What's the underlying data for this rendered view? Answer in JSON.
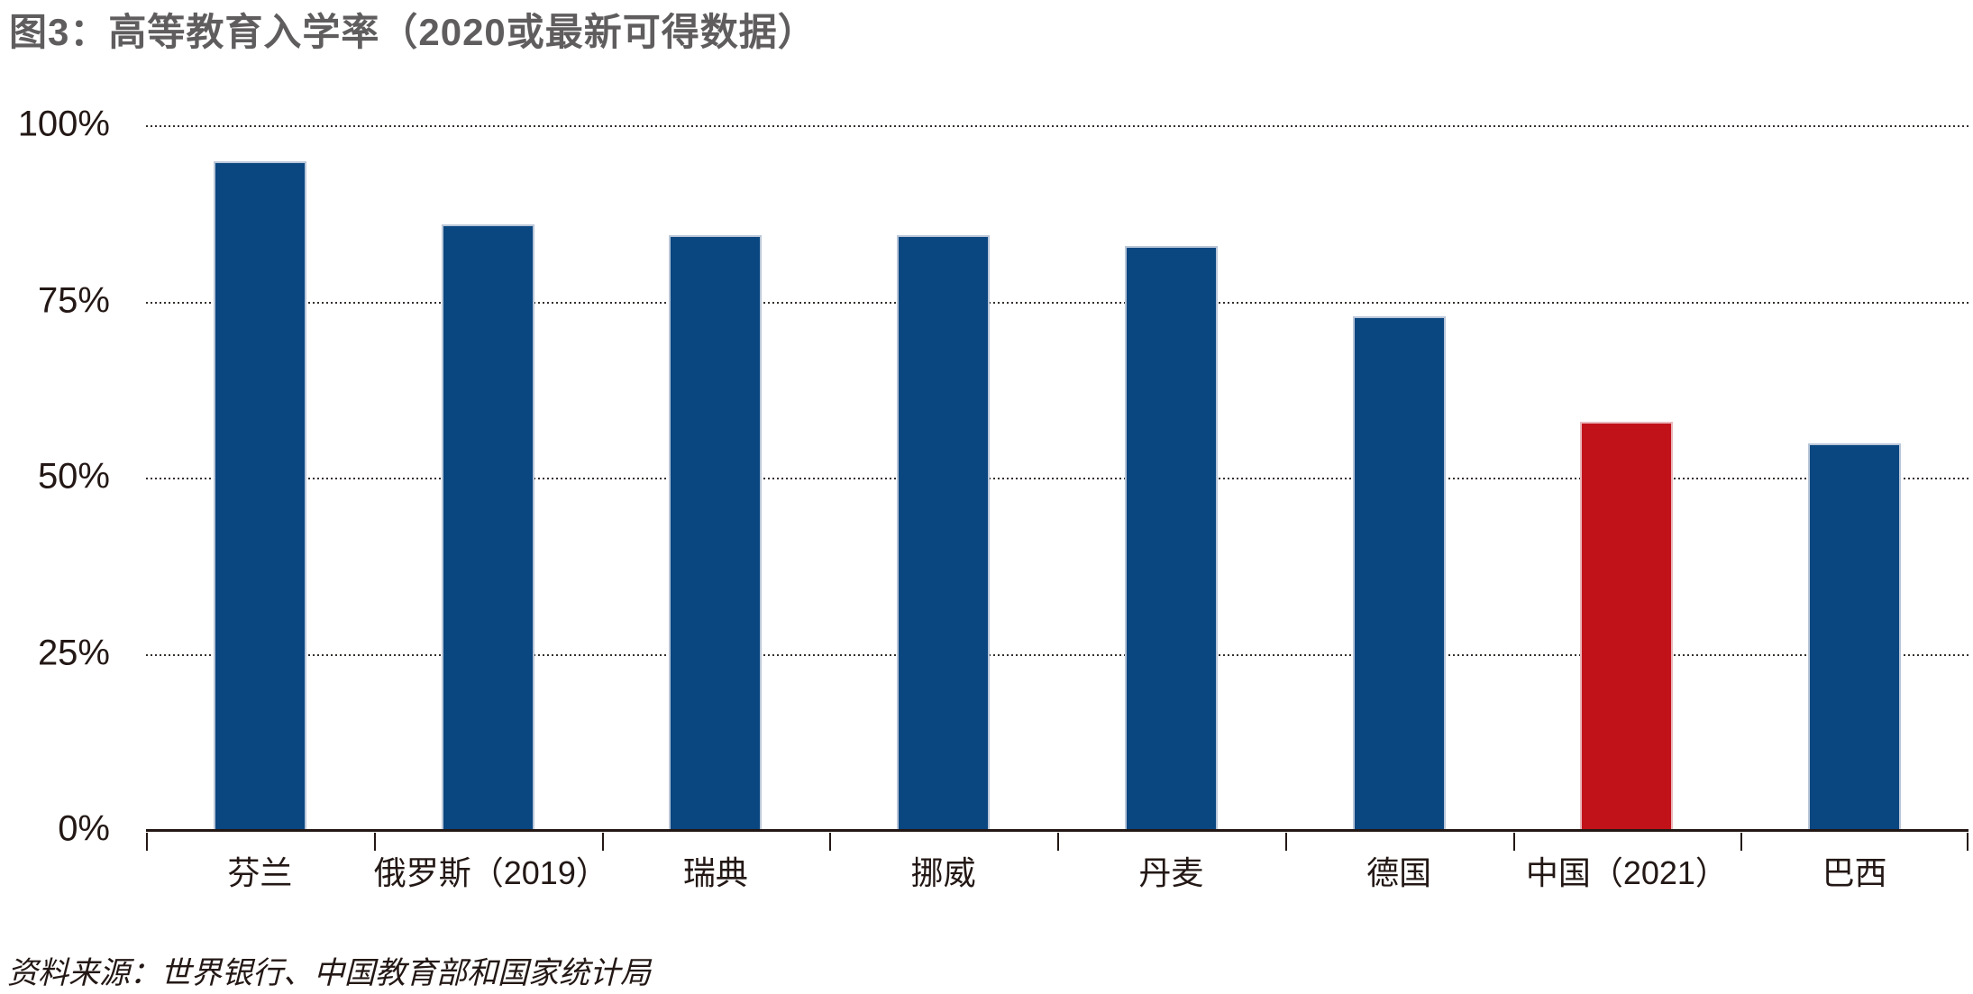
{
  "colors": {
    "bar_default": "#0a4680",
    "bar_highlight": "#c1121a",
    "bar_stroke_default": "#b9c6d8",
    "bar_stroke_highlight": "#e9b9bc",
    "title_text": "#5f5d5d",
    "axis_text": "#231815",
    "gridline_dots": "#35302e"
  },
  "chart_data": {
    "type": "bar",
    "title": "图3：高等教育入学率（2020或最新可得数据）",
    "source": "资料来源：世界银行、中国教育部和国家统计局",
    "categories": [
      "芬兰",
      "俄罗斯（2019）",
      "瑞典",
      "挪威",
      "丹麦",
      "德国",
      "中国（2021）",
      "巴西"
    ],
    "values": [
      95,
      86,
      84.5,
      84.5,
      83,
      73,
      58,
      55
    ],
    "highlight_index": 6,
    "xlabel": "",
    "ylabel": "",
    "y_ticks": [
      "0%",
      "25%",
      "50%",
      "75%",
      "100%"
    ],
    "ylim": [
      0,
      100
    ],
    "grid": "horizontal-dotted",
    "legend": "none"
  }
}
